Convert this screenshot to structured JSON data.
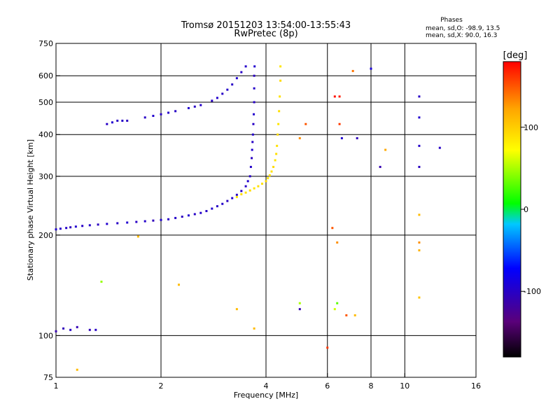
{
  "chart_data": {
    "type": "scatter",
    "title": "Tromsø 20151203 13:54:00-13:55:43",
    "subtitle": "RwPretec (8p)",
    "xlabel": "Frequency [MHz]",
    "ylabel": "Stationary phase Virtual Height [km]",
    "xscale": "log",
    "yscale": "log",
    "xlim": [
      1,
      16
    ],
    "ylim": [
      75,
      750
    ],
    "grid": true,
    "x_ticks": [
      1,
      2,
      4,
      6,
      8,
      10,
      16
    ],
    "y_ticks": [
      75,
      100,
      200,
      300,
      400,
      500,
      600,
      750
    ],
    "x_grid": [
      2,
      4,
      6,
      8,
      10
    ],
    "y_grid": [
      100,
      200,
      300,
      400,
      500,
      600
    ],
    "stats": {
      "header": "Phases",
      "o_line": "mean, sd,O: -98.9, 13.5",
      "x_line": "mean, sd,X:  90.0, 16.3"
    },
    "colorbar": {
      "label": "[deg]",
      "range": [
        -180,
        180
      ],
      "ticks": [
        100,
        0,
        -100
      ],
      "colors": [
        "#000000",
        "#5a007a",
        "#0000ff",
        "#00c8ff",
        "#00ff00",
        "#ffff00",
        "#ffa500",
        "#ff0000"
      ]
    },
    "series": [
      {
        "points": [
          [
            1.0,
            208,
            -95
          ],
          [
            1.03,
            209,
            -100
          ],
          [
            1.07,
            210,
            -98
          ],
          [
            1.1,
            211,
            -105
          ],
          [
            1.14,
            212,
            -95
          ],
          [
            1.19,
            213,
            -100
          ],
          [
            1.25,
            214,
            -98
          ],
          [
            1.32,
            215,
            -102
          ],
          [
            1.4,
            216,
            -96
          ],
          [
            1.5,
            217,
            -100
          ],
          [
            1.6,
            218,
            -95
          ],
          [
            1.7,
            219,
            -100
          ],
          [
            1.8,
            220,
            -98
          ],
          [
            1.9,
            221,
            -105
          ],
          [
            2.0,
            222,
            -96
          ],
          [
            2.1,
            223,
            -100
          ],
          [
            2.2,
            225,
            -98
          ],
          [
            2.3,
            227,
            -102
          ],
          [
            2.4,
            229,
            -95
          ],
          [
            2.5,
            231,
            -100
          ],
          [
            2.6,
            233,
            -98
          ],
          [
            2.7,
            236,
            -100
          ],
          [
            2.8,
            240,
            -96
          ],
          [
            2.9,
            244,
            -100
          ],
          [
            3.0,
            248,
            -98
          ],
          [
            3.1,
            253,
            -102
          ],
          [
            3.2,
            258,
            -96
          ],
          [
            3.3,
            264,
            -100
          ],
          [
            3.4,
            271,
            -98
          ],
          [
            3.5,
            280,
            -100
          ],
          [
            3.55,
            290,
            -96
          ],
          [
            3.6,
            300,
            -100
          ],
          [
            3.62,
            320,
            -98
          ],
          [
            3.64,
            340,
            -102
          ],
          [
            3.65,
            360,
            -96
          ],
          [
            3.66,
            380,
            -100
          ],
          [
            3.67,
            400,
            -98
          ],
          [
            3.68,
            430,
            -100
          ],
          [
            3.69,
            460,
            -96
          ],
          [
            3.7,
            500,
            -100
          ],
          [
            3.7,
            550,
            -98
          ],
          [
            3.7,
            600,
            -102
          ],
          [
            3.71,
            640,
            -96
          ]
        ]
      },
      {
        "points": [
          [
            1.4,
            430,
            -100
          ],
          [
            1.45,
            435,
            -95
          ],
          [
            1.5,
            440,
            -100
          ],
          [
            1.55,
            440,
            -98
          ],
          [
            1.6,
            440,
            -102
          ],
          [
            1.8,
            450,
            -100
          ],
          [
            1.9,
            455,
            -96
          ],
          [
            2.0,
            460,
            -100
          ],
          [
            2.1,
            465,
            -98
          ],
          [
            2.2,
            470,
            -100
          ],
          [
            2.4,
            480,
            -96
          ],
          [
            2.5,
            485,
            -100
          ],
          [
            2.6,
            490,
            -98
          ],
          [
            2.8,
            505,
            -100
          ],
          [
            2.9,
            515,
            -96
          ],
          [
            3.0,
            530,
            -100
          ],
          [
            3.1,
            545,
            -98
          ],
          [
            3.2,
            565,
            -100
          ],
          [
            3.3,
            590,
            -96
          ],
          [
            3.4,
            615,
            -100
          ],
          [
            3.5,
            640,
            -98
          ]
        ]
      },
      {
        "points": [
          [
            3.3,
            260,
            85
          ],
          [
            3.4,
            265,
            90
          ],
          [
            3.5,
            268,
            88
          ],
          [
            3.6,
            272,
            92
          ],
          [
            3.7,
            276,
            86
          ],
          [
            3.8,
            280,
            90
          ],
          [
            3.9,
            285,
            88
          ],
          [
            4.0,
            290,
            92
          ],
          [
            4.05,
            296,
            86
          ],
          [
            4.1,
            302,
            90
          ],
          [
            4.15,
            310,
            88
          ],
          [
            4.2,
            320,
            92
          ],
          [
            4.25,
            335,
            86
          ],
          [
            4.28,
            350,
            90
          ],
          [
            4.3,
            370,
            88
          ],
          [
            4.32,
            400,
            92
          ],
          [
            4.34,
            430,
            86
          ],
          [
            4.36,
            470,
            90
          ],
          [
            4.38,
            520,
            88
          ],
          [
            4.4,
            580,
            92
          ],
          [
            4.4,
            640,
            86
          ]
        ]
      },
      {
        "points": [
          [
            1.0,
            103,
            -110
          ],
          [
            1.05,
            105,
            -105
          ],
          [
            1.1,
            104,
            -100
          ],
          [
            1.15,
            106,
            -108
          ],
          [
            1.25,
            104,
            -105
          ],
          [
            1.3,
            104,
            -100
          ],
          [
            5.0,
            390,
            130
          ],
          [
            5.2,
            430,
            150
          ],
          [
            6.3,
            520,
            175
          ],
          [
            6.5,
            520,
            170
          ],
          [
            6.5,
            430,
            160
          ],
          [
            6.6,
            390,
            -95
          ],
          [
            7.1,
            620,
            140
          ],
          [
            7.3,
            390,
            -105
          ],
          [
            8.0,
            630,
            -90
          ],
          [
            8.5,
            320,
            -110
          ],
          [
            8.8,
            360,
            120
          ],
          [
            11.0,
            520,
            -100
          ],
          [
            11.0,
            450,
            -95
          ],
          [
            11.0,
            370,
            -98
          ],
          [
            11.0,
            320,
            -102
          ],
          [
            11.0,
            230,
            110
          ],
          [
            11.0,
            190,
            130
          ],
          [
            11.0,
            180,
            115
          ],
          [
            11.0,
            130,
            105
          ],
          [
            12.6,
            365,
            -100
          ],
          [
            6.2,
            210,
            150
          ],
          [
            6.4,
            190,
            130
          ],
          [
            6.3,
            120,
            60
          ],
          [
            6.4,
            125,
            30
          ],
          [
            6.8,
            115,
            150
          ],
          [
            7.2,
            115,
            110
          ],
          [
            5.0,
            125,
            50
          ],
          [
            5.0,
            120,
            -110
          ],
          [
            1.72,
            198,
            110
          ],
          [
            1.35,
            145,
            45
          ],
          [
            2.25,
            142,
            110
          ],
          [
            3.3,
            120,
            110
          ],
          [
            3.7,
            105,
            110
          ],
          [
            6.0,
            92,
            160
          ],
          [
            1.15,
            79,
            110
          ]
        ]
      }
    ]
  }
}
